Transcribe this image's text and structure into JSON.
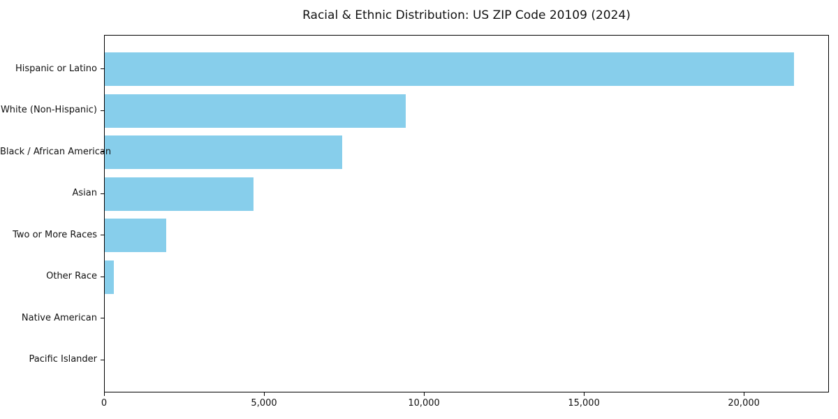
{
  "chart_data": {
    "type": "bar",
    "orientation": "horizontal",
    "title": "Racial & Ethnic Distribution: US ZIP Code 20109 (2024)",
    "categories": [
      "Hispanic or Latino",
      "White (Non-Hispanic)",
      "Black / African American",
      "Asian",
      "Two or More Races",
      "Other Race",
      "Native American",
      "Pacific Islander"
    ],
    "values": [
      21550,
      9400,
      7420,
      4650,
      1920,
      290,
      0,
      0
    ],
    "xlabel": "",
    "ylabel": "",
    "xlim": [
      0,
      22660
    ],
    "x_ticks": [
      0,
      5000,
      10000,
      15000,
      20000
    ],
    "x_tick_labels": [
      "0",
      "5,000",
      "10,000",
      "15,000",
      "20,000"
    ],
    "bar_color": "#87CEEB",
    "grid": false,
    "legend_position": "none"
  }
}
